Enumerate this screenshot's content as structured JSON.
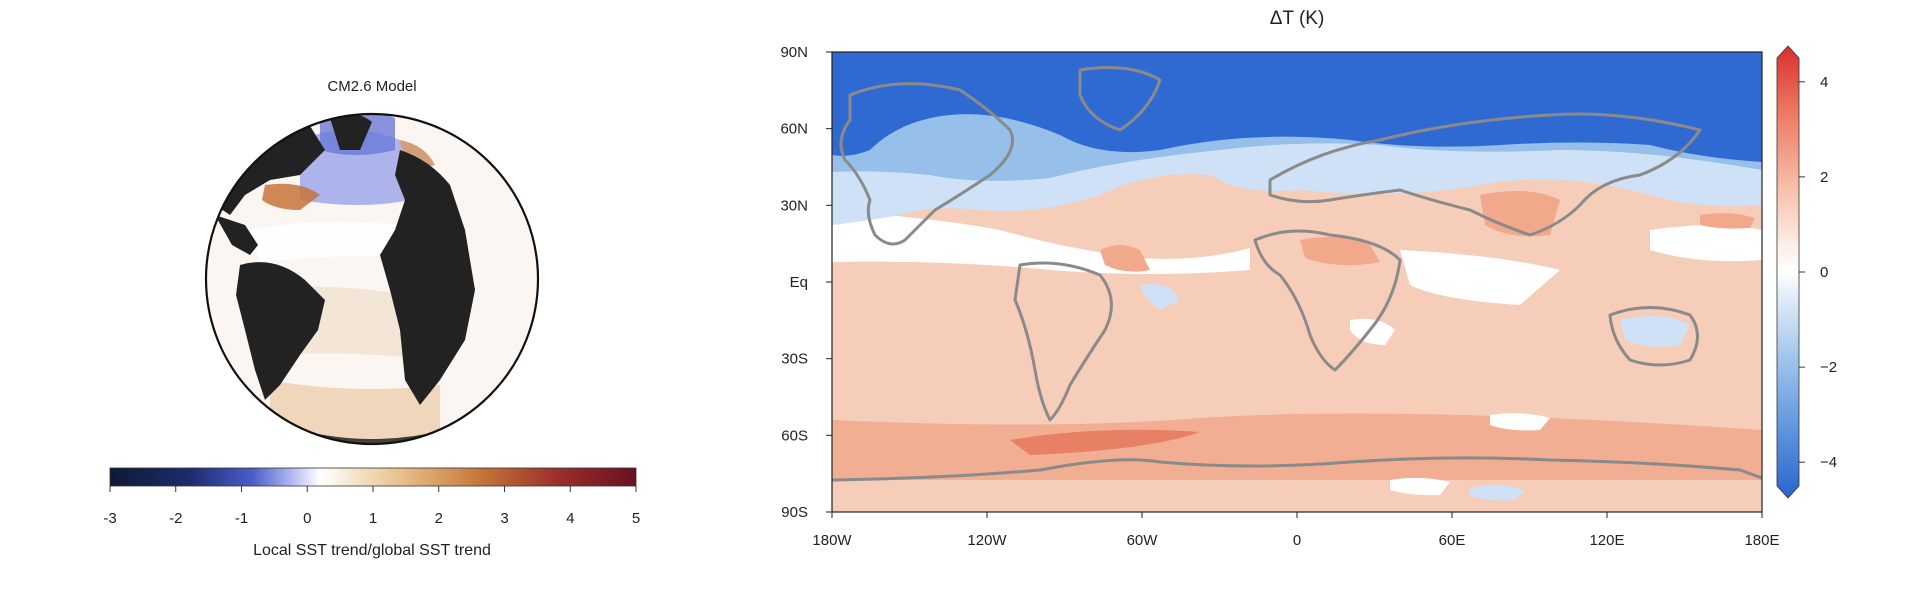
{
  "left_panel": {
    "title": "CM2.6 Model",
    "colorbar": {
      "ticks": [
        "-3",
        "-2",
        "-1",
        "0",
        "1",
        "2",
        "3",
        "4",
        "5"
      ],
      "label": "Local SST trend/global SST trend",
      "colors": [
        "#0e1a33",
        "#1d2b6b",
        "#4b5cc9",
        "#a9b3ef",
        "#ffffff",
        "#e8c28c",
        "#c7783a",
        "#9a2f2a",
        "#6a1020"
      ]
    }
  },
  "right_panel": {
    "title": "ΔT (K)",
    "y_ticks": [
      "90N",
      "60N",
      "30N",
      "Eq",
      "30S",
      "60S",
      "90S"
    ],
    "x_ticks": [
      "180W",
      "120W",
      "60W",
      "0",
      "60E",
      "120E",
      "180E"
    ],
    "colorbar": {
      "ticks": [
        "4",
        "2",
        "0",
        "−2",
        "−4"
      ],
      "range": [
        -4.5,
        4.5
      ]
    }
  },
  "colors": {
    "warm_light": "#f6cdb8",
    "warm_mid": "#f2a88b",
    "warm_strong": "#e88066",
    "cool_light": "#cfe1f6",
    "cool_mid": "#96c0ea",
    "cool_strong": "#2f6ad3",
    "coastline": "#8a8a8a",
    "land_dark": "#222222"
  }
}
